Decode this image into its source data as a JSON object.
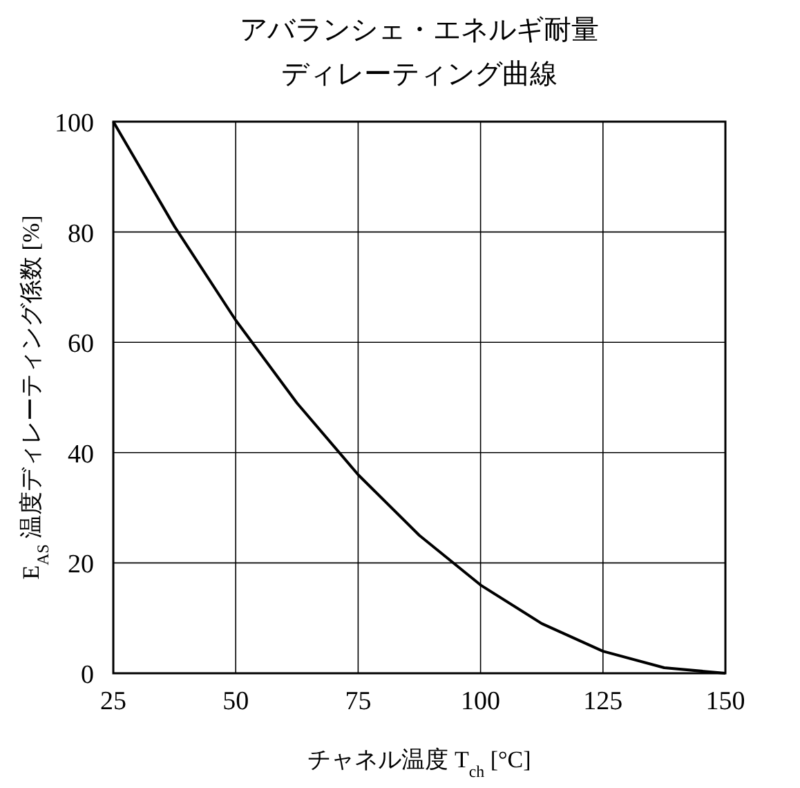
{
  "chart_data": {
    "type": "line",
    "title": "アバランシェ・エネルギ耐量",
    "subtitle": "ディレーティング曲線",
    "xlabel": "チャネル温度 T$_{ch}$ [°C]",
    "ylabel": "E$_{AS}$ 温度ディレーティング係数 [%]",
    "x": [
      25,
      37.5,
      50,
      62.5,
      75,
      87.5,
      100,
      112.5,
      125,
      137.5,
      150
    ],
    "series": [
      {
        "color": "#000000",
        "values": [
          100,
          81,
          64,
          49,
          36,
          25,
          16,
          9,
          4,
          1,
          0
        ]
      }
    ],
    "xlim": [
      25,
      150
    ],
    "ylim": [
      0,
      100
    ],
    "xticks": [
      25,
      50,
      75,
      100,
      125,
      150
    ],
    "yticks": [
      0,
      20,
      40,
      60,
      80,
      100
    ],
    "grid": true
  }
}
